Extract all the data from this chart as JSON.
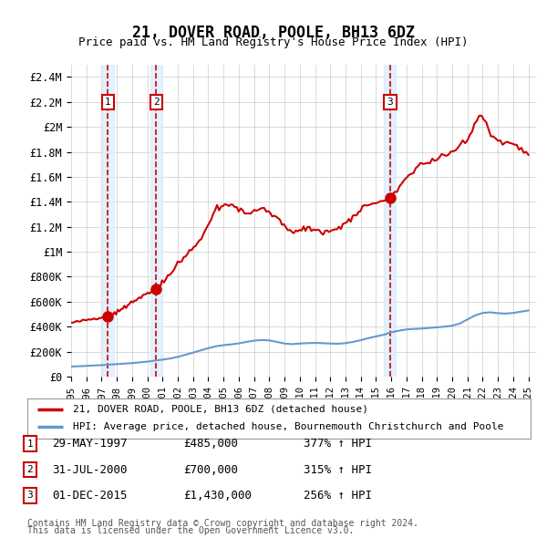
{
  "title": "21, DOVER ROAD, POOLE, BH13 6DZ",
  "subtitle": "Price paid vs. HM Land Registry's House Price Index (HPI)",
  "ylabel_values": [
    "£0",
    "£200K",
    "£400K",
    "£600K",
    "£800K",
    "£1M",
    "£1.2M",
    "£1.4M",
    "£1.6M",
    "£1.8M",
    "£2M",
    "£2.2M",
    "£2.4M"
  ],
  "yticks": [
    0,
    200000,
    400000,
    600000,
    800000,
    1000000,
    1200000,
    1400000,
    1600000,
    1800000,
    2000000,
    2200000,
    2400000
  ],
  "ylim": [
    0,
    2500000
  ],
  "xlim_start": 1995.0,
  "xlim_end": 2025.5,
  "sale_dates": [
    1997.41,
    2000.58,
    2015.92
  ],
  "sale_prices": [
    485000,
    700000,
    1430000
  ],
  "sale_labels": [
    "1",
    "2",
    "3"
  ],
  "transaction_table": [
    {
      "label": "1",
      "date": "29-MAY-1997",
      "price": "£485,000",
      "hpi": "377% ↑ HPI"
    },
    {
      "label": "2",
      "date": "31-JUL-2000",
      "price": "£700,000",
      "hpi": "315% ↑ HPI"
    },
    {
      "label": "3",
      "date": "01-DEC-2015",
      "price": "£1,430,000",
      "hpi": "256% ↑ HPI"
    }
  ],
  "legend_line1": "21, DOVER ROAD, POOLE, BH13 6DZ (detached house)",
  "legend_line2": "HPI: Average price, detached house, Bournemouth Christchurch and Poole",
  "footer1": "Contains HM Land Registry data © Crown copyright and database right 2024.",
  "footer2": "This data is licensed under the Open Government Licence v3.0.",
  "hpi_color": "#6699cc",
  "sale_line_color": "#cc0000",
  "sale_dot_color": "#cc0000",
  "dashed_color": "#cc0000",
  "highlight_color": "#ddeeff",
  "background_color": "#ffffff",
  "grid_color": "#cccccc"
}
